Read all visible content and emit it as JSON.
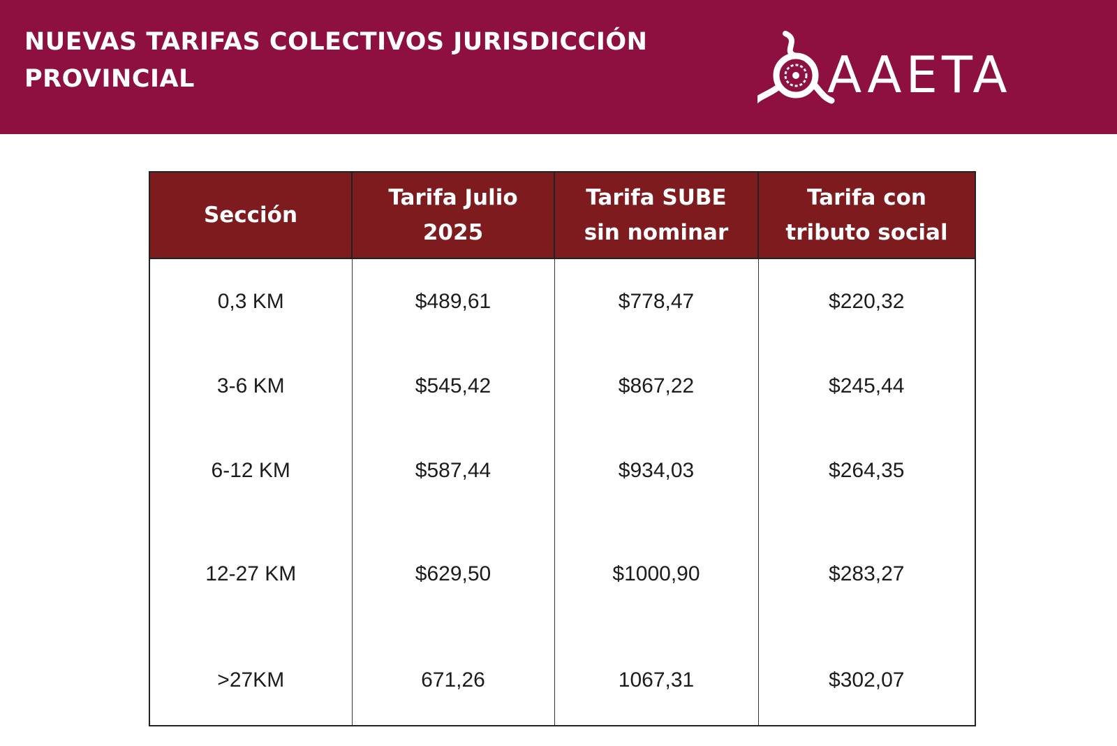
{
  "header": {
    "title_line1": "NUEVAS TARIFAS COLECTIVOS JURISDICCIÓN",
    "title_line2": "PROVINCIAL",
    "logo_text": "AAETA",
    "background_color": "#8d1041"
  },
  "table": {
    "header_color": "#7d1b1f",
    "columns": [
      {
        "line1": "Sección",
        "line2": ""
      },
      {
        "line1": "Tarifa Julio",
        "line2": "2025"
      },
      {
        "line1": "Tarifa SUBE",
        "line2": "sin nominar"
      },
      {
        "line1": "Tarifa con",
        "line2": "tributo social"
      }
    ],
    "rows": [
      [
        "0,3 KM",
        "$489,61",
        "$778,47",
        "$220,32"
      ],
      [
        "3-6 KM",
        "$545,42",
        "$867,22",
        "$245,44"
      ],
      [
        "6-12 KM",
        "$587,44",
        "$934,03",
        "$264,35"
      ],
      [
        "12-27 KM",
        "$629,50",
        "$1000,90",
        "$283,27"
      ],
      [
        ">27KM",
        "671,26",
        "1067,31",
        "$302,07"
      ]
    ]
  }
}
